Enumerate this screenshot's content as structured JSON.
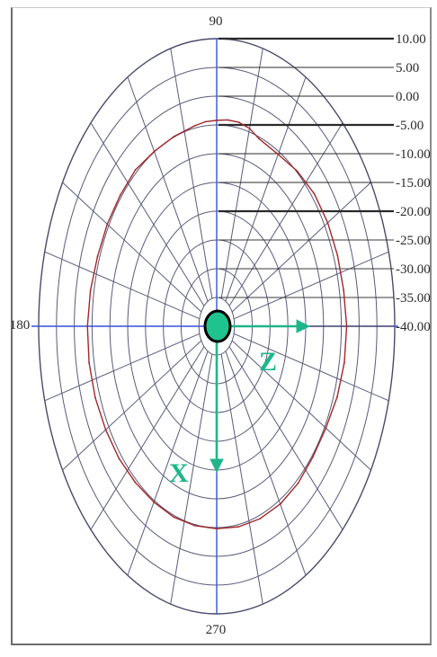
{
  "chart_data": {
    "type": "polar",
    "title": "",
    "radial_ticks": [
      "10.00",
      "5.00",
      "0.00",
      "-5.00",
      "-10.00",
      "-15.00",
      "-20.00",
      "-25.00",
      "-30.00",
      "-35.00",
      "-40.00"
    ],
    "radial_range": [
      -40,
      10
    ],
    "angle_labels": [
      "90",
      "180",
      "270"
    ],
    "grid": true,
    "series": [
      {
        "color": "#a0282a",
        "angles_deg": [
          0,
          10,
          20,
          30,
          40,
          50,
          60,
          70,
          75,
          80,
          85,
          90,
          95,
          100,
          110,
          120,
          130,
          140,
          150,
          160,
          170,
          180,
          190,
          200,
          210,
          220,
          230,
          240,
          250,
          260,
          270,
          280,
          290,
          300,
          310,
          320,
          330,
          340,
          350
        ],
        "values": [
          -3.5,
          -3.8,
          -3.9,
          -4.0,
          -4.2,
          -4.8,
          -5.5,
          -5.3,
          -4.4,
          -4.0,
          -4.0,
          -4.2,
          -4.3,
          -4.6,
          -4.9,
          -4.9,
          -4.5,
          -4.6,
          -4.5,
          -4.4,
          -4.0,
          -3.7,
          -3.6,
          -3.7,
          -4.0,
          -4.2,
          -4.5,
          -4.7,
          -4.7,
          -4.8,
          -4.8,
          -4.6,
          -4.4,
          -4.3,
          -4.4,
          -4.7,
          -4.6,
          -4.0,
          -3.6
        ]
      }
    ],
    "axes_overlay": {
      "arrows": [
        {
          "label": "Z",
          "direction": "right"
        },
        {
          "label": "X",
          "direction": "down"
        }
      ],
      "color": "#1fb58a"
    }
  }
}
